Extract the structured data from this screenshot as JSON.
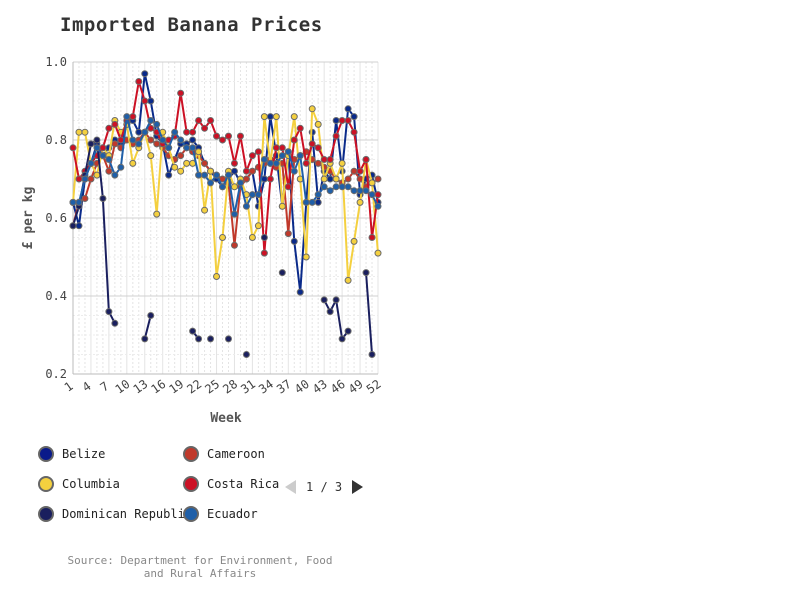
{
  "chart_data": {
    "type": "line",
    "title": "Imported Banana Prices",
    "xlabel": "Week",
    "ylabel": "£ per kg",
    "xlim": [
      1,
      52
    ],
    "ylim": [
      0.2,
      1.0
    ],
    "yticks": [
      "0.2",
      "0.4",
      "0.6",
      "0.8",
      "1.0"
    ],
    "xticks": [
      "1",
      "4",
      "7",
      "10",
      "13",
      "16",
      "19",
      "22",
      "25",
      "28",
      "31",
      "34",
      "37",
      "40",
      "43",
      "46",
      "49",
      "52"
    ],
    "grid": true,
    "series": [
      {
        "name": "Belize",
        "color": "#0a2a8a",
        "values": [
          0.64,
          0.58,
          0.7,
          0.74,
          0.79,
          0.76,
          0.78,
          0.8,
          0.79,
          0.84,
          0.85,
          0.82,
          0.97,
          0.9,
          0.81,
          0.79,
          0.71,
          0.75,
          0.79,
          0.79,
          0.8,
          0.78,
          0.74,
          0.72,
          0.7,
          0.68,
          0.7,
          0.72,
          0.69,
          0.7,
          0.72,
          0.63,
          0.7,
          0.86,
          0.76,
          0.63,
          0.77,
          0.54,
          0.41,
          0.64,
          0.82,
          0.64,
          0.72,
          0.7,
          0.85,
          0.72,
          0.88,
          0.86,
          0.66,
          0.7,
          0.71,
          0.64
        ]
      },
      {
        "name": "Cameroon",
        "color": "#c0392b",
        "values": [
          0.58,
          0.64,
          0.65,
          0.7,
          0.74,
          0.76,
          0.72,
          0.79,
          0.78,
          0.8,
          0.79,
          0.8,
          0.82,
          0.8,
          0.79,
          0.78,
          0.76,
          0.75,
          0.76,
          0.78,
          0.77,
          0.76,
          0.74,
          0.72,
          0.71,
          0.7,
          0.69,
          0.53,
          0.68,
          0.7,
          0.72,
          0.73,
          0.74,
          0.75,
          0.73,
          0.74,
          0.56,
          0.75,
          0.76,
          0.77,
          0.75,
          0.74,
          0.73,
          0.72,
          0.7,
          0.69,
          0.7,
          0.72,
          0.7,
          0.68,
          0.69,
          0.7
        ]
      },
      {
        "name": "Columbia",
        "color": "#f4d03f",
        "values": [
          0.64,
          0.82,
          0.82,
          0.74,
          0.71,
          0.78,
          0.76,
          0.85,
          0.82,
          0.84,
          0.74,
          0.78,
          0.82,
          0.76,
          0.61,
          0.82,
          0.78,
          0.73,
          0.72,
          0.74,
          0.74,
          0.77,
          0.62,
          0.72,
          0.45,
          0.55,
          0.72,
          0.68,
          0.7,
          0.66,
          0.55,
          0.58,
          0.86,
          0.74,
          0.86,
          0.63,
          0.76,
          0.86,
          0.7,
          0.5,
          0.88,
          0.84,
          0.7,
          0.74,
          0.7,
          0.74,
          0.44,
          0.54,
          0.64,
          0.75,
          0.69,
          0.51
        ]
      },
      {
        "name": "Costa Rica",
        "color": "#cc1125",
        "values": [
          0.78,
          0.7,
          0.72,
          0.74,
          0.76,
          0.78,
          0.83,
          0.84,
          0.8,
          0.85,
          0.86,
          0.95,
          0.9,
          0.83,
          0.82,
          0.79,
          0.8,
          0.81,
          0.92,
          0.82,
          0.82,
          0.85,
          0.83,
          0.85,
          0.81,
          0.8,
          0.81,
          0.74,
          0.81,
          0.72,
          0.76,
          0.77,
          0.51,
          0.7,
          0.78,
          0.78,
          0.68,
          0.8,
          0.83,
          0.74,
          0.79,
          0.78,
          0.75,
          0.75,
          0.81,
          0.85,
          0.85,
          0.82,
          0.72,
          0.75,
          0.55,
          0.66
        ]
      },
      {
        "name": "Dominican Republic",
        "color": "#1a1f5e",
        "values": [
          0.58,
          0.63,
          0.71,
          0.79,
          0.8,
          0.65,
          0.36,
          0.33,
          null,
          null,
          null,
          null,
          0.29,
          0.35,
          null,
          null,
          null,
          null,
          null,
          null,
          0.31,
          0.29,
          null,
          0.29,
          null,
          null,
          0.29,
          null,
          null,
          0.25,
          null,
          null,
          0.55,
          null,
          null,
          0.46,
          null,
          null,
          null,
          null,
          null,
          null,
          0.39,
          0.36,
          0.39,
          0.29,
          0.31,
          null,
          null,
          0.46,
          0.25,
          null
        ]
      },
      {
        "name": "Ecuador",
        "color": "#1f5fa8",
        "values": [
          0.64,
          0.64,
          0.7,
          0.74,
          0.78,
          0.76,
          0.75,
          0.71,
          0.73,
          0.86,
          0.8,
          0.79,
          0.82,
          0.85,
          0.84,
          0.8,
          0.78,
          0.82,
          0.8,
          0.78,
          0.78,
          0.71,
          0.71,
          0.69,
          0.71,
          0.68,
          0.71,
          0.61,
          0.69,
          0.63,
          0.66,
          0.66,
          0.75,
          0.74,
          0.74,
          0.76,
          0.77,
          0.72,
          0.76,
          0.64,
          0.64,
          0.66,
          0.68,
          0.67,
          0.68,
          0.68,
          0.68,
          0.67,
          0.67,
          0.67,
          0.66,
          0.63
        ]
      }
    ],
    "legend": {
      "position": "bottom",
      "page": "1 / 3"
    }
  },
  "legend_items": [
    {
      "name": "Belize",
      "color": "#0a1a8a"
    },
    {
      "name": "Cameroon",
      "color": "#c0392b"
    },
    {
      "name": "Columbia",
      "color": "#f4d03f"
    },
    {
      "name": "Costa Rica",
      "color": "#cc1125"
    },
    {
      "name": "Dominican Republic",
      "color": "#1a1f5e"
    },
    {
      "name": "Ecuador",
      "color": "#1f5fa8"
    }
  ],
  "legend_nav": {
    "page_text": "1 / 3"
  },
  "source": "Source: Department for Environment, Food and Rural Affairs"
}
